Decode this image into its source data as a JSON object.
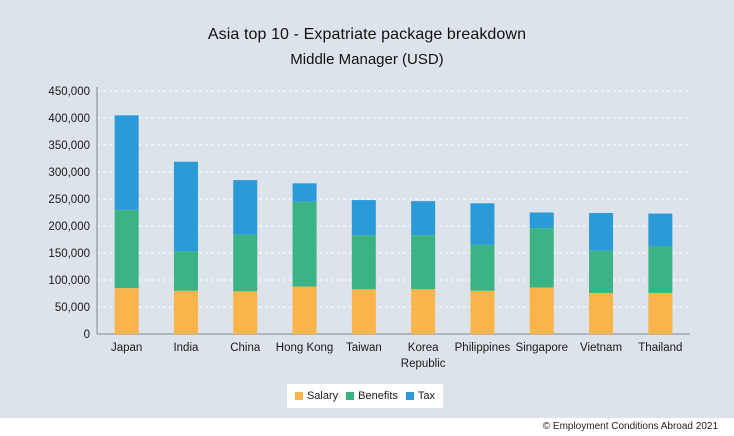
{
  "chart_data": {
    "type": "bar",
    "stacked": true,
    "title": "Asia top 10 - Expatriate package breakdown",
    "subtitle": "Middle Manager (USD)",
    "categories": [
      "Japan",
      "India",
      "China",
      "Hong Kong",
      "Taiwan",
      "Korea Republic",
      "Philippines",
      "Singapore",
      "Vietnam",
      "Thailand"
    ],
    "series": [
      {
        "name": "Salary",
        "color": "#f9b44c",
        "values": [
          85000,
          80000,
          79000,
          88000,
          83000,
          83000,
          80000,
          86000,
          76000,
          76000
        ]
      },
      {
        "name": "Benefits",
        "color": "#3bb384",
        "values": [
          145000,
          73000,
          105000,
          157000,
          100000,
          100000,
          85000,
          110000,
          78000,
          87000
        ]
      },
      {
        "name": "Tax",
        "color": "#2a9ad8",
        "values": [
          175000,
          166000,
          101000,
          34000,
          65000,
          63000,
          77000,
          29000,
          70000,
          60000
        ]
      }
    ],
    "y_ticks": [
      "0",
      "50,000",
      "100,000",
      "150,000",
      "200,000",
      "250,000",
      "300,000",
      "350,000",
      "400,000",
      "450,000"
    ],
    "ylim": [
      0,
      450000
    ],
    "xlabel": "",
    "ylabel": "",
    "grid": "horizontal dashed",
    "legend_position": "bottom-center"
  },
  "footer": {
    "copyright": "© Employment Conditions Abroad 2021"
  }
}
